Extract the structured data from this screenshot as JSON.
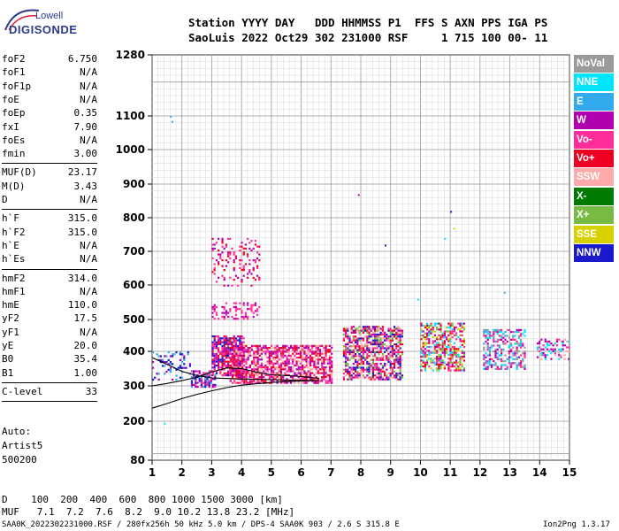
{
  "logo": {
    "line1": "Lowell",
    "line2": "DIGISONDE"
  },
  "header": {
    "labels": "Station YYYY DAY   DDD HHMMSS P1  FFS S AXN PPS IGA PS",
    "values": "SaoLuis 2022 Oct29 302 231000 RSF     1 715 100 00- 11"
  },
  "params": [
    [
      {
        "k": "foF2",
        "v": "6.750"
      },
      {
        "k": "foF1",
        "v": "N/A"
      },
      {
        "k": "foF1p",
        "v": "N/A"
      },
      {
        "k": "foE",
        "v": "N/A"
      },
      {
        "k": "foEp",
        "v": "0.35"
      },
      {
        "k": "fxI",
        "v": "7.90"
      },
      {
        "k": "foEs",
        "v": "N/A"
      },
      {
        "k": "fmin",
        "v": "3.00"
      }
    ],
    [
      {
        "k": "MUF(D)",
        "v": "23.17"
      },
      {
        "k": "M(D)",
        "v": "3.43"
      },
      {
        "k": "D",
        "v": "N/A"
      }
    ],
    [
      {
        "k": "h`F",
        "v": "315.0"
      },
      {
        "k": "h`F2",
        "v": "315.0"
      },
      {
        "k": "h`E",
        "v": "N/A"
      },
      {
        "k": "h`Es",
        "v": "N/A"
      }
    ],
    [
      {
        "k": "hmF2",
        "v": "314.0"
      },
      {
        "k": "hmF1",
        "v": "N/A"
      },
      {
        "k": "hmE",
        "v": "110.0"
      },
      {
        "k": "yF2",
        "v": "17.5"
      },
      {
        "k": "yF1",
        "v": "N/A"
      },
      {
        "k": "yE",
        "v": "20.0"
      },
      {
        "k": "B0",
        "v": "35.4"
      },
      {
        "k": "B1",
        "v": "1.00"
      }
    ],
    [
      {
        "k": "C-level",
        "v": "33"
      }
    ]
  ],
  "auto": {
    "line1": "Auto:",
    "line2": "Artist5",
    "line3": "500200"
  },
  "legend": [
    {
      "label": "NoVal",
      "color": "#9a9a9a"
    },
    {
      "label": "NNE",
      "color": "#00e5ff"
    },
    {
      "label": "E",
      "color": "#33aaee"
    },
    {
      "label": "W",
      "color": "#b000b0"
    },
    {
      "label": "Vo-",
      "color": "#ff2d9a"
    },
    {
      "label": "Vo+",
      "color": "#ee0022"
    },
    {
      "label": "SSW",
      "color": "#ffaaaa"
    },
    {
      "label": "X-",
      "color": "#007a00"
    },
    {
      "label": "X+",
      "color": "#77bb44"
    },
    {
      "label": "SSE",
      "color": "#d8d000"
    },
    {
      "label": "NNW",
      "color": "#1a1acc"
    }
  ],
  "dmuf": {
    "d_line": "D    100  200  400  600  800 1000 1500 3000 [km]",
    "muf_line": "MUF   7.1  7.2  7.6  8.2  9.0 10.2 13.8 23.2 [MHz]"
  },
  "footer": {
    "left": "SAA0K_2022302231000.RSF / 280fx256h 50 kHz 5.0 km / DPS-4 SAA0K 903 / 2.6 S 315.8 E",
    "right": "Ion2Png 1.3.17"
  },
  "chart_data": {
    "type": "scatter",
    "xlim": [
      1,
      15
    ],
    "ylim": [
      80,
      1280
    ],
    "x_ticks": [
      1,
      2,
      3,
      4,
      5,
      6,
      7,
      8,
      9,
      10,
      11,
      12,
      13,
      14,
      15
    ],
    "y_ticks": [
      80,
      200,
      300,
      400,
      500,
      600,
      700,
      800,
      900,
      1000,
      1100,
      1280
    ],
    "grid": true,
    "y_scale": "reciprocal-like",
    "clusters": [
      {
        "x": [
          2.3,
          3.1
        ],
        "y": [
          295,
          345
        ],
        "density": 0.7,
        "colors": [
          "NNW",
          "W",
          "Vo-",
          "E"
        ]
      },
      {
        "x": [
          3.0,
          4.1
        ],
        "y": [
          330,
          450
        ],
        "density": 0.75,
        "colors": [
          "W",
          "Vo-",
          "Vo+",
          "NNW"
        ]
      },
      {
        "x": [
          3.0,
          4.6
        ],
        "y": [
          500,
          550
        ],
        "density": 0.35,
        "colors": [
          "W",
          "Vo-"
        ]
      },
      {
        "x": [
          3.0,
          4.6
        ],
        "y": [
          600,
          740
        ],
        "density": 0.2,
        "colors": [
          "W",
          "Vo-",
          "Vo+"
        ]
      },
      {
        "x": [
          3.6,
          7.0
        ],
        "y": [
          310,
          420
        ],
        "density": 0.7,
        "colors": [
          "Vo+",
          "Vo-",
          "W",
          "SSW"
        ]
      },
      {
        "x": [
          7.4,
          9.4
        ],
        "y": [
          320,
          480
        ],
        "density": 0.65,
        "colors": [
          "Vo+",
          "Vo-",
          "SSW",
          "W",
          "X+",
          "NNW"
        ]
      },
      {
        "x": [
          10.0,
          11.5
        ],
        "y": [
          345,
          490
        ],
        "density": 0.55,
        "colors": [
          "Vo+",
          "Vo-",
          "X+",
          "SSE",
          "NNE",
          "W"
        ]
      },
      {
        "x": [
          12.1,
          13.5
        ],
        "y": [
          350,
          470
        ],
        "density": 0.5,
        "colors": [
          "NNE",
          "E",
          "W",
          "Vo-",
          "NoVal"
        ]
      },
      {
        "x": [
          13.9,
          15.0
        ],
        "y": [
          380,
          440
        ],
        "density": 0.45,
        "colors": [
          "NNE",
          "W",
          "Vo-",
          "SSW"
        ]
      },
      {
        "x": [
          1.0,
          2.3
        ],
        "y": [
          320,
          400
        ],
        "density": 0.25,
        "colors": [
          "NNW",
          "W",
          "E"
        ]
      }
    ],
    "outliers": [
      {
        "x": 1.6,
        "y": 1100,
        "c": "E"
      },
      {
        "x": 1.65,
        "y": 1085,
        "c": "E"
      },
      {
        "x": 1.4,
        "y": 195,
        "c": "NNE"
      },
      {
        "x": 7.9,
        "y": 870,
        "c": "W"
      },
      {
        "x": 8.8,
        "y": 720,
        "c": "NNW"
      },
      {
        "x": 11.0,
        "y": 820,
        "c": "NNW"
      },
      {
        "x": 11.1,
        "y": 770,
        "c": "SSE"
      },
      {
        "x": 10.8,
        "y": 740,
        "c": "NNE"
      },
      {
        "x": 12.8,
        "y": 580,
        "c": "E"
      },
      {
        "x": 9.9,
        "y": 560,
        "c": "NNE"
      }
    ],
    "profile_lines": [
      {
        "name": "upper",
        "points": [
          [
            1.0,
            382
          ],
          [
            1.5,
            362
          ],
          [
            2.0,
            342
          ],
          [
            2.5,
            330
          ],
          [
            3.0,
            323
          ],
          [
            4.0,
            320
          ],
          [
            5.0,
            318
          ],
          [
            6.0,
            316
          ],
          [
            6.6,
            315
          ]
        ]
      },
      {
        "name": "lower",
        "points": [
          [
            1.0,
            237
          ],
          [
            1.5,
            250
          ],
          [
            2.0,
            264
          ],
          [
            2.5,
            276
          ],
          [
            3.0,
            286
          ],
          [
            3.5,
            295
          ],
          [
            4.0,
            302
          ],
          [
            5.0,
            310
          ],
          [
            6.0,
            314
          ],
          [
            6.6,
            315
          ]
        ]
      },
      {
        "name": "trace",
        "points": [
          [
            1.0,
            300
          ],
          [
            1.5,
            307
          ],
          [
            2.0,
            315
          ],
          [
            2.5,
            325
          ],
          [
            3.0,
            340
          ],
          [
            3.5,
            352
          ],
          [
            4.0,
            350
          ],
          [
            4.5,
            340
          ],
          [
            5.0,
            332
          ],
          [
            5.5,
            330
          ],
          [
            6.0,
            327
          ],
          [
            6.6,
            322
          ]
        ]
      }
    ]
  }
}
